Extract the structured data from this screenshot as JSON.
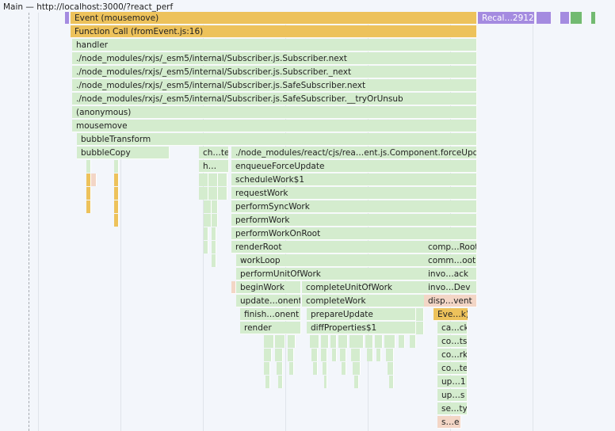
{
  "track_title": "Main — http://localhost:3000/?react_perf",
  "colors": {
    "scripting_green": "#d4ecce",
    "event_yellow": "#edc25b",
    "render_purple": "#a48be0",
    "warning_peach": "#f3d6c6",
    "paint_green": "#72ba71"
  },
  "flame": {
    "event": "Event (mousemove)",
    "recalc": "Recal…2912)",
    "function_call": "Function Call (fromEvent.js:16)",
    "handler": "handler",
    "subscriber_next": "./node_modules/rxjs/_esm5/internal/Subscriber.js.Subscriber.next",
    "subscriber__next": "./node_modules/rxjs/_esm5/internal/Subscriber.js.Subscriber._next",
    "safe_next": "./node_modules/rxjs/_esm5/internal/Subscriber.js.SafeSubscriber.next",
    "safe_try": "./node_modules/rxjs/_esm5/internal/Subscriber.js.SafeSubscriber.__tryOrUnsub",
    "anonymous": "(anonymous)",
    "mousemove": "mousemove",
    "bubble_transform": "bubbleTransform",
    "bubble_copy": "bubbleCopy",
    "ch_te": "ch…te",
    "force_update": "./node_modules/react/cjs/rea…ent.js.Component.forceUpdate",
    "h_short": "h…",
    "enqueue_force_update": "enqueueForceUpdate",
    "schedule_work": "scheduleWork$1",
    "request_work": "requestWork",
    "perform_sync_work": "performSyncWork",
    "perform_work": "performWork",
    "perform_work_on_root": "performWorkOnRoot",
    "render_root": "renderRoot",
    "work_loop": "workLoop",
    "perform_unit": "performUnitOfWork",
    "begin_work": "beginWork",
    "complete_unit": "completeUnitOfWork",
    "update_onent": "update…onent",
    "complete_work": "completeWork",
    "finish_onent": "finish…onent",
    "prepare_update": "prepareUpdate",
    "render": "render",
    "diff_properties": "diffProperties$1",
    "comp_root": "comp…Root",
    "comm_oot": "comm…oot",
    "invo_ack": "invo…ack",
    "invo_dev": "invo…Dev",
    "disp_vent": "disp…vent",
    "eve_k": "Eve…k)",
    "ca_ck": "ca…ck",
    "co_ts": "co…ts",
    "co_rk": "co…rk",
    "co_te": "co…te",
    "up_1": "up…1",
    "up_s": "up…s",
    "se_ty": "se…ty",
    "s_e": "s…e"
  }
}
